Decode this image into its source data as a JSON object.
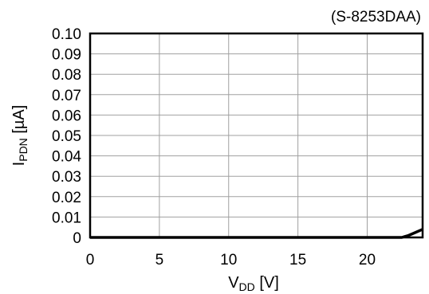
{
  "chart_data": {
    "type": "line",
    "title": "(S-8253DAA)",
    "xlabel": {
      "main": "V",
      "sub": "DD",
      "unit": " [V]"
    },
    "ylabel": {
      "main": "I",
      "sub": "PDN",
      "unit": " [µA]"
    },
    "xlim": [
      0,
      24
    ],
    "ylim": [
      0,
      0.1
    ],
    "x_ticks": [
      0,
      5,
      10,
      15,
      20
    ],
    "y_ticks": [
      0,
      0.01,
      0.02,
      0.03,
      0.04,
      0.05,
      0.06,
      0.07,
      0.08,
      0.09,
      0.1
    ],
    "x_tick_labels": [
      "0",
      "5",
      "10",
      "15",
      "20"
    ],
    "y_tick_labels": [
      "0",
      "0.01",
      "0.02",
      "0.03",
      "0.04",
      "0.05",
      "0.06",
      "0.07",
      "0.08",
      "0.09",
      "0.10"
    ],
    "grid": true,
    "series": [
      {
        "x": [
          0,
          5,
          10,
          15,
          20,
          22.5,
          23,
          23.5,
          24
        ],
        "y": [
          0,
          0,
          0,
          0,
          0,
          0,
          0.001,
          0.0025,
          0.004
        ]
      }
    ]
  }
}
